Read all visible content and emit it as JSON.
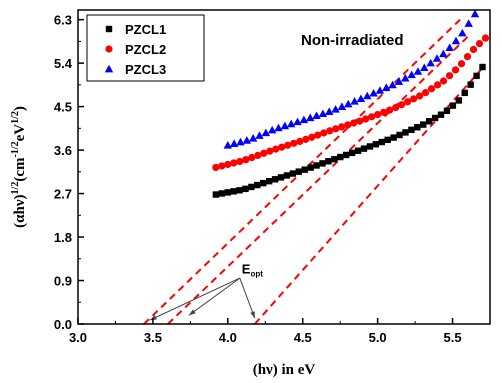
{
  "chart_data": {
    "type": "scatter",
    "x_axis": {
      "label_prefix": "(hν) in eV",
      "range": [
        3.0,
        5.75
      ],
      "ticks": [
        "3.0",
        "3.5",
        "4.0",
        "4.5",
        "5.0",
        "5.5"
      ],
      "tick_values": [
        3.0,
        3.5,
        4.0,
        4.5,
        5.0,
        5.5
      ]
    },
    "y_axis": {
      "label_main": "(αhν)",
      "label_sup1": "1/2",
      "label_mid": "(cm",
      "label_sup2": "-1/2",
      "label_mid2": "eV",
      "label_sup3": "1/2",
      "label_end": ")",
      "range": [
        0.0,
        6.5
      ],
      "ticks": [
        "0.0",
        "0.9",
        "1.8",
        "2.7",
        "3.6",
        "4.5",
        "5.4",
        "6.3"
      ],
      "tick_values": [
        0.0,
        0.9,
        1.8,
        2.7,
        3.6,
        4.5,
        5.4,
        6.3
      ]
    },
    "annotation": "Non-irradiated",
    "eopt_label_main": "E",
    "eopt_label_sub": "opt",
    "legend": {
      "placement": "top-left",
      "entries": [
        {
          "name": "PZCL1",
          "marker": "square",
          "color": "#000000"
        },
        {
          "name": "PZCL2",
          "marker": "circle",
          "color": "#ff0000"
        },
        {
          "name": "PZCL3",
          "marker": "triangle",
          "color": "#0000ff"
        }
      ]
    },
    "series": [
      {
        "name": "PZCL1",
        "marker": "square",
        "color": "#000000",
        "x_start": 3.92,
        "x_end": 5.7,
        "count": 46,
        "curve": [
          [
            3.92,
            2.68
          ],
          [
            4.1,
            2.78
          ],
          [
            4.3,
            2.98
          ],
          [
            4.5,
            3.18
          ],
          [
            4.7,
            3.4
          ],
          [
            4.9,
            3.62
          ],
          [
            5.1,
            3.85
          ],
          [
            5.3,
            4.12
          ],
          [
            5.45,
            4.38
          ],
          [
            5.55,
            4.65
          ],
          [
            5.62,
            4.95
          ],
          [
            5.7,
            5.32
          ]
        ]
      },
      {
        "name": "PZCL2",
        "marker": "circle",
        "color": "#ff0000",
        "x_start": 3.92,
        "x_end": 5.72,
        "count": 46,
        "curve": [
          [
            3.92,
            3.24
          ],
          [
            4.1,
            3.38
          ],
          [
            4.3,
            3.6
          ],
          [
            4.5,
            3.8
          ],
          [
            4.7,
            4.02
          ],
          [
            4.9,
            4.22
          ],
          [
            5.1,
            4.45
          ],
          [
            5.3,
            4.75
          ],
          [
            5.45,
            5.05
          ],
          [
            5.55,
            5.35
          ],
          [
            5.65,
            5.72
          ],
          [
            5.72,
            5.92
          ]
        ]
      },
      {
        "name": "PZCL3",
        "marker": "triangle",
        "color": "#0000ff",
        "x_start": 4.0,
        "x_end": 5.65,
        "count": 40,
        "curve": [
          [
            4.0,
            3.7
          ],
          [
            4.15,
            3.82
          ],
          [
            4.3,
            4.02
          ],
          [
            4.5,
            4.22
          ],
          [
            4.7,
            4.42
          ],
          [
            4.9,
            4.68
          ],
          [
            5.1,
            4.95
          ],
          [
            5.3,
            5.28
          ],
          [
            5.45,
            5.62
          ],
          [
            5.55,
            5.95
          ],
          [
            5.65,
            6.42
          ]
        ]
      }
    ],
    "fit_lines": [
      {
        "color": "#ff0000",
        "style": "dashed",
        "x1": 3.44,
        "y1": 0.0,
        "x2": 5.55,
        "y2": 6.3
      },
      {
        "color": "#ff0000",
        "style": "dashed",
        "x1": 3.6,
        "y1": 0.0,
        "x2": 5.62,
        "y2": 6.0
      },
      {
        "color": "#ff0000",
        "style": "dashed",
        "x1": 4.18,
        "y1": 0.0,
        "x2": 5.7,
        "y2": 5.3
      }
    ],
    "arrows": [
      {
        "from": [
          4.08,
          0.95
        ],
        "to": [
          3.48,
          0.08
        ]
      },
      {
        "from": [
          4.08,
          0.95
        ],
        "to": [
          3.74,
          0.18
        ]
      },
      {
        "from": [
          4.08,
          0.95
        ],
        "to": [
          4.18,
          0.12
        ]
      }
    ],
    "eopt_position": [
      4.08,
      1.05
    ]
  }
}
